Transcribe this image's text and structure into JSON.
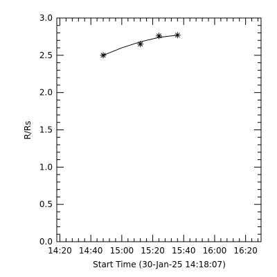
{
  "chart_data": {
    "type": "line",
    "xlabel": "Start Time (30-Jan-25 14:18:07)",
    "ylabel": "R/Rs",
    "x_ticks": [
      "14:20",
      "14:40",
      "15:00",
      "15:20",
      "15:40",
      "16:00",
      "16:20"
    ],
    "y_ticks": [
      "0.0",
      "0.5",
      "1.0",
      "1.5",
      "2.0",
      "2.5",
      "3.0"
    ],
    "xlim": [
      "14:18",
      "16:30"
    ],
    "ylim": [
      0.0,
      3.0
    ],
    "marker": "asterisk",
    "grid": false,
    "series": [
      {
        "x": [
          "14:48",
          "15:12",
          "15:24",
          "15:36"
        ],
        "y": [
          2.5,
          2.65,
          2.76,
          2.77
        ]
      }
    ],
    "fit_curve": {
      "x": [
        "14:48",
        "15:00",
        "15:12",
        "15:24",
        "15:36"
      ],
      "y": [
        2.5,
        2.6,
        2.68,
        2.74,
        2.77
      ]
    }
  }
}
